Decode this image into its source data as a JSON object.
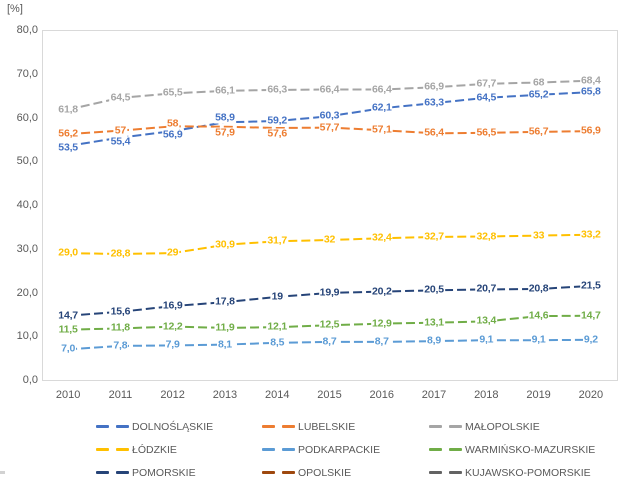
{
  "chart_data": {
    "type": "line",
    "title": "",
    "axis_unit": "[%]",
    "x": [
      "2010",
      "2011",
      "2012",
      "2013",
      "2014",
      "2015",
      "2016",
      "2017",
      "2018",
      "2019",
      "2020"
    ],
    "y_ticks": [
      "80,0",
      "70,0",
      "60,0",
      "50,0",
      "40,0",
      "30,0",
      "20,0",
      "10,0",
      "0,0"
    ],
    "ylim": [
      0,
      80
    ],
    "grid": false,
    "legend_position": "bottom",
    "line_style": "dashed",
    "plot_border_color": "#D9D9D9",
    "text_color": "#595959",
    "series": [
      {
        "name": "DOLNOŚLĄSKIE",
        "color": "#4472C4",
        "values": [
          53.5,
          55.4,
          56.9,
          58.9,
          59.2,
          60.3,
          62.1,
          63.3,
          64.5,
          65.2,
          65.8
        ],
        "labels": [
          "53,5",
          "55,4",
          "56,9",
          "58,9",
          "59,2",
          "60,3",
          "62,1",
          "63,3",
          "64,5",
          "65,2",
          "65,8"
        ]
      },
      {
        "name": "LUBELSKIE",
        "color": "#ED7D31",
        "values": [
          56.2,
          57,
          58,
          57.9,
          57.6,
          57.7,
          57.1,
          56.4,
          56.5,
          56.7,
          56.9
        ],
        "labels": [
          "56,2",
          "57",
          "58",
          "57,9",
          "57,6",
          "57,7",
          "57,1",
          "56,4",
          "56,5",
          "56,7",
          "56,9"
        ]
      },
      {
        "name": "MAŁOPOLSKIE",
        "color": "#A5A5A5",
        "values": [
          61.8,
          64.5,
          65.5,
          66.1,
          66.3,
          66.4,
          66.4,
          66.9,
          67.7,
          68,
          68.4
        ],
        "labels": [
          "61,8",
          "64,5",
          "65,5",
          "66,1",
          "66,3",
          "66,4",
          "66,4",
          "66,9",
          "67,7",
          "68",
          "68,4"
        ]
      },
      {
        "name": "ŁÓDZKIE",
        "color": "#FFC000",
        "values": [
          29,
          28.8,
          29,
          30.9,
          31.7,
          32,
          32.4,
          32.7,
          32.8,
          33,
          33.2
        ],
        "labels": [
          "29,0",
          "28,8",
          "29",
          "30,9",
          "31,7",
          "32",
          "32,4",
          "32,7",
          "32,8",
          "33",
          "33,2"
        ]
      },
      {
        "name": "PODKARPACKIE",
        "color": "#5B9BD5",
        "values": [
          7,
          7.8,
          7.9,
          8.1,
          8.5,
          8.7,
          8.7,
          8.9,
          9.1,
          9.1,
          9.2
        ],
        "labels": [
          "7,0",
          "7,8",
          "7,9",
          "8,1",
          "8,5",
          "8,7",
          "8,7",
          "8,9",
          "9,1",
          "9,1",
          "9,2"
        ]
      },
      {
        "name": "WARMIŃSKO-MAZURSKIE",
        "color": "#70AD47",
        "values": [
          11.5,
          11.8,
          12.2,
          11.9,
          12.1,
          12.5,
          12.9,
          13.1,
          13.4,
          14.6,
          14.7
        ],
        "labels": [
          "11,5",
          "11,8",
          "12,2",
          "11,9",
          "12,1",
          "12,5",
          "12,9",
          "13,1",
          "13,4",
          "14,6",
          "14,7"
        ]
      },
      {
        "name": "POMORSKIE",
        "color": "#264478",
        "values": [
          14.7,
          15.6,
          16.9,
          17.8,
          19,
          19.9,
          20.2,
          20.5,
          20.7,
          20.8,
          21.5
        ],
        "labels": [
          "14,7",
          "15,6",
          "16,9",
          "17,8",
          "19",
          "19,9",
          "20,2",
          "20,5",
          "20,7",
          "20,8",
          "21,5"
        ]
      },
      {
        "name": "OPOLSKIE",
        "color": "#9E480E",
        "values": [],
        "labels": []
      },
      {
        "name": "KUJAWSKO-POMORSKIE",
        "color": "#636363",
        "values": [],
        "labels": []
      }
    ]
  }
}
